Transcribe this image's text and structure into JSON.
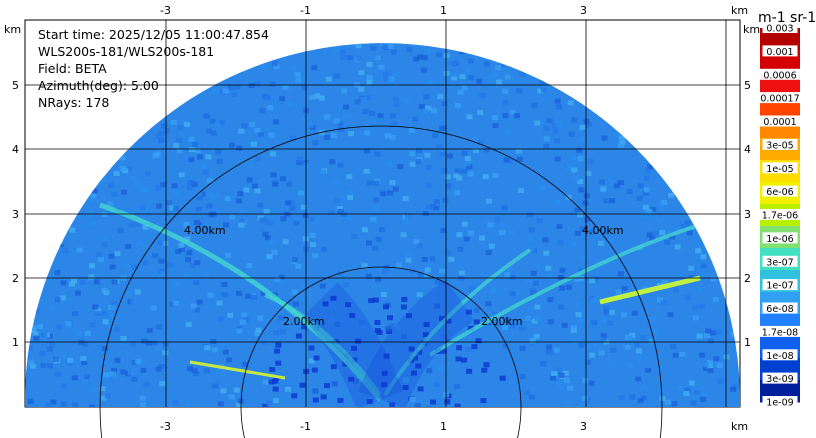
{
  "info": {
    "start_time": "Start time: 2025/12/05 11:00:47.854",
    "instrument": "WLS200s-181/WLS200s-181",
    "field": "Field: BETA",
    "azimuth": "Azimuth(deg): 5.00",
    "nrays": "NRays: 178"
  },
  "axes": {
    "x_ticks": [
      "-3",
      "-1",
      "1",
      "3"
    ],
    "y_ticks": [
      "1",
      "2",
      "3",
      "4",
      "5"
    ],
    "unit": "km"
  },
  "range_rings": [
    "2.00km",
    "4.00km"
  ],
  "colorbar": {
    "title": "m-1 sr-1",
    "labels": [
      "0.003",
      "0.001",
      "0.0006",
      "0.00017",
      "0.0001",
      "3e-05",
      "1e-05",
      "6e-06",
      "1.7e-06",
      "1e-06",
      "3e-07",
      "1e-07",
      "6e-08",
      "1.7e-08",
      "1e-08",
      "3e-09",
      "1e-09"
    ],
    "colors": [
      "#b30000",
      "#d40000",
      "#ee1010",
      "#ff4400",
      "#ff8800",
      "#ffaa00",
      "#ffdd00",
      "#f0f000",
      "#b8f000",
      "#80e070",
      "#40e0c0",
      "#30c0e0",
      "#30a0f0",
      "#2080ff",
      "#1060f0",
      "#0040d0",
      "#0020a0"
    ]
  }
}
